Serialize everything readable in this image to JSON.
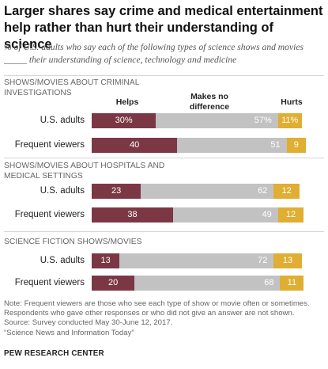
{
  "title": "Larger shares say crime and medical entertainment help rather than hurt their understanding  of science",
  "subtitle": "% of U.S. adults who say each of the following types of science shows and movies _____ their understanding of science, technology and medicine",
  "column_headers": {
    "helps": "Helps",
    "no_difference": "Makes no difference",
    "hurts": "Hurts"
  },
  "colors": {
    "helps": "#7b3844",
    "no_difference": "#c2c2c2",
    "hurts": "#dfae32"
  },
  "chart_data": {
    "type": "bar",
    "stacked": true,
    "orientation": "horizontal",
    "xlim": [
      0,
      100
    ],
    "groups": [
      {
        "label": "SHOWS/MOVIES ABOUT CRIMINAL INVESTIGATIONS",
        "rows": [
          {
            "label": "U.S. adults",
            "helps": 30,
            "no_difference": 57,
            "hurts": 11,
            "helps_text": "30%",
            "no_difference_text": "57%",
            "hurts_text": "11%"
          },
          {
            "label": "Frequent viewers",
            "helps": 40,
            "no_difference": 51,
            "hurts": 9,
            "helps_text": "40",
            "no_difference_text": "51",
            "hurts_text": "9"
          }
        ]
      },
      {
        "label": "SHOWS/MOVIES ABOUT HOSPITALS AND MEDICAL SETTINGS",
        "rows": [
          {
            "label": "U.S. adults",
            "helps": 23,
            "no_difference": 62,
            "hurts": 12,
            "helps_text": "23",
            "no_difference_text": "62",
            "hurts_text": "12"
          },
          {
            "label": "Frequent viewers",
            "helps": 38,
            "no_difference": 49,
            "hurts": 12,
            "helps_text": "38",
            "no_difference_text": "49",
            "hurts_text": "12"
          }
        ]
      },
      {
        "label": "SCIENCE FICTION SHOWS/MOVIES",
        "rows": [
          {
            "label": "U.S. adults",
            "helps": 13,
            "no_difference": 72,
            "hurts": 13,
            "helps_text": "13",
            "no_difference_text": "72",
            "hurts_text": "13"
          },
          {
            "label": "Frequent viewers",
            "helps": 20,
            "no_difference": 68,
            "hurts": 11,
            "helps_text": "20",
            "no_difference_text": "68",
            "hurts_text": "11"
          }
        ]
      }
    ]
  },
  "footer": {
    "note_lines": [
      "Note: Frequent viewers are those who see each type of show or movie often or sometimes.",
      "Respondents who gave other responses or who did not give an answer are not shown.",
      "Source: Survey conducted May 30-June 12, 2017.",
      "“Science News and Information Today”"
    ],
    "brand": "PEW RESEARCH CENTER"
  }
}
